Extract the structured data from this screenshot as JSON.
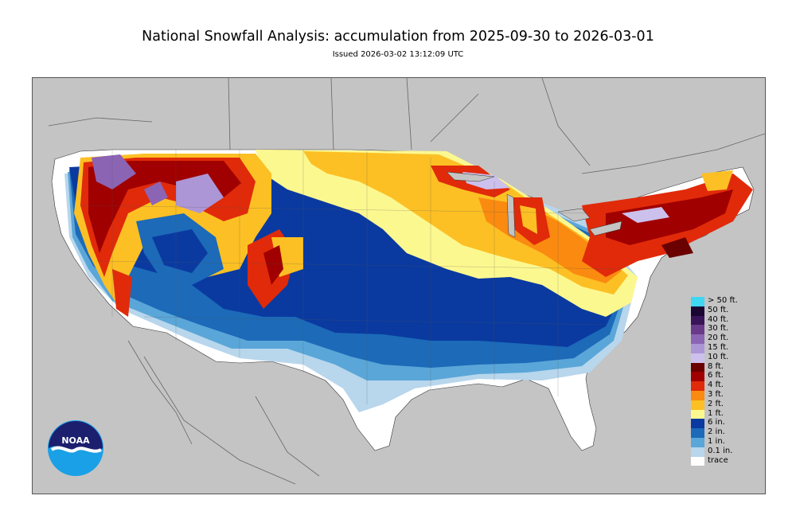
{
  "header": {
    "title": "National Snowfall Analysis: accumulation from 2025-09-30 to 2026-03-01",
    "subtitle": "Issued 2026-03-02 13:12:09 UTC"
  },
  "legend": [
    {
      "label": "> 50 ft.",
      "color": "#3fd6f2"
    },
    {
      "label": "50 ft.",
      "color": "#1a0633"
    },
    {
      "label": "40 ft.",
      "color": "#3a1458"
    },
    {
      "label": "30 ft.",
      "color": "#6a3a8a"
    },
    {
      "label": "20 ft.",
      "color": "#8c64b4"
    },
    {
      "label": "15 ft.",
      "color": "#ac96d6"
    },
    {
      "label": "10 ft.",
      "color": "#ccc0ec"
    },
    {
      "label": "8 ft.",
      "color": "#6a0000"
    },
    {
      "label": "6 ft.",
      "color": "#a00000"
    },
    {
      "label": "4 ft.",
      "color": "#e02a0a"
    },
    {
      "label": "3 ft.",
      "color": "#fa8a10"
    },
    {
      "label": "2 ft.",
      "color": "#fcc024"
    },
    {
      "label": "1 ft.",
      "color": "#fcf890"
    },
    {
      "label": "6 in.",
      "color": "#0a3aa0"
    },
    {
      "label": "2 in.",
      "color": "#1c6ab8"
    },
    {
      "label": "1 in.",
      "color": "#5aa6d8"
    },
    {
      "label": "0.1 in.",
      "color": "#b8d6ec"
    },
    {
      "label": "trace",
      "color": "#ffffff"
    }
  ],
  "logo": {
    "text": "NOAA",
    "icon": "noaa-logo-icon"
  },
  "colors": {
    "background": "#c4c4c4",
    "land": "#ffffff"
  }
}
